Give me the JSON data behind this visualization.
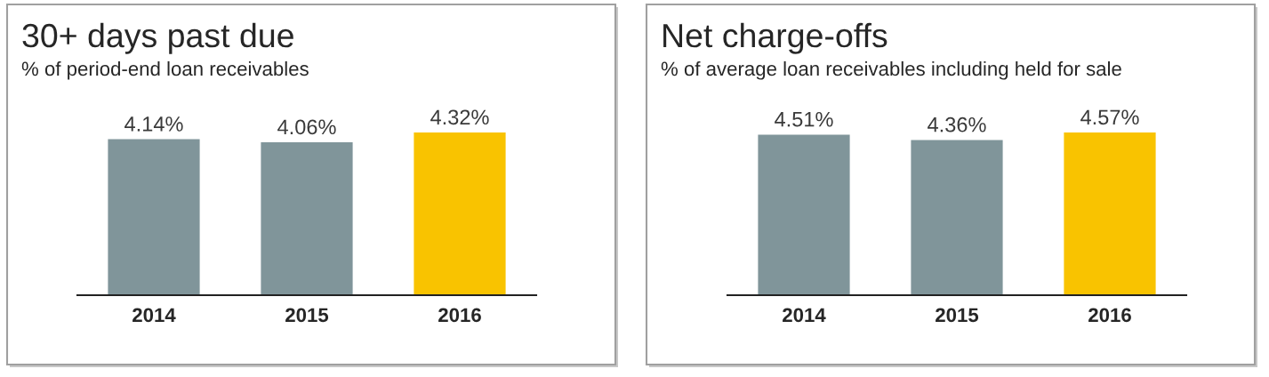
{
  "chart_data": [
    {
      "type": "bar",
      "title": "30+ days past due",
      "subtitle": "% of period-end loan receivables",
      "categories": [
        "2014",
        "2015",
        "2016"
      ],
      "values": [
        4.14,
        4.06,
        4.32
      ],
      "colors": [
        "#80959a",
        "#80959a",
        "#f9c300"
      ],
      "value_labels": [
        "4.14%",
        "4.06%",
        "4.32%"
      ],
      "tick_labels": "x"
    },
    {
      "type": "bar",
      "title": "Net charge-offs",
      "subtitle": "% of average loan receivables including held for sale",
      "categories": [
        "2014",
        "2015",
        "2016"
      ],
      "values": [
        4.51,
        4.36,
        4.57
      ],
      "colors": [
        "#80959a",
        "#80959a",
        "#f9c300"
      ],
      "value_labels": [
        "4.51%",
        "4.36%",
        "4.57%"
      ],
      "tick_labels": "x"
    }
  ]
}
